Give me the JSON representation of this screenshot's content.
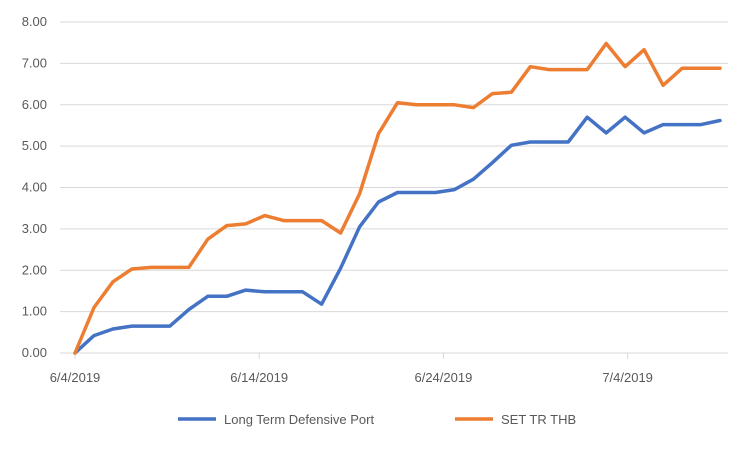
{
  "chart_data": {
    "type": "line",
    "title": "",
    "xlabel": "",
    "ylabel": "",
    "ylim": [
      0,
      8
    ],
    "yticks": [
      "0.00",
      "1.00",
      "2.00",
      "3.00",
      "4.00",
      "5.00",
      "6.00",
      "7.00",
      "8.00"
    ],
    "xtick_labels": [
      {
        "index": 0,
        "label": "6/4/2019"
      },
      {
        "index": 10,
        "label": "6/14/2019"
      },
      {
        "index": 20,
        "label": "6/24/2019"
      },
      {
        "index": 30,
        "label": "7/4/2019"
      }
    ],
    "grid": true,
    "legend_position": "bottom",
    "series": [
      {
        "name": "Long Term Defensive Port",
        "color": "#4472C4",
        "values": [
          0,
          0.42,
          0.58,
          0.65,
          0.65,
          0.65,
          1.05,
          1.37,
          1.37,
          1.52,
          1.48,
          1.48,
          1.48,
          1.18,
          2.05,
          3.05,
          3.65,
          3.88,
          3.88,
          3.88,
          3.95,
          4.2,
          4.6,
          5.02,
          5.1,
          5.1,
          5.1,
          5.7,
          5.32,
          5.7,
          5.32,
          5.52,
          5.52,
          5.52,
          5.62
        ]
      },
      {
        "name": "SET TR THB",
        "color": "#ED7D31",
        "values": [
          0,
          1.1,
          1.72,
          2.03,
          2.07,
          2.07,
          2.07,
          2.75,
          3.08,
          3.12,
          3.32,
          3.2,
          3.2,
          3.2,
          2.9,
          3.85,
          5.3,
          6.05,
          6.0,
          6.0,
          6.0,
          5.93,
          6.27,
          6.3,
          6.92,
          6.85,
          6.85,
          6.85,
          7.48,
          6.92,
          7.33,
          6.47,
          6.88,
          6.88,
          6.88
        ]
      }
    ]
  }
}
